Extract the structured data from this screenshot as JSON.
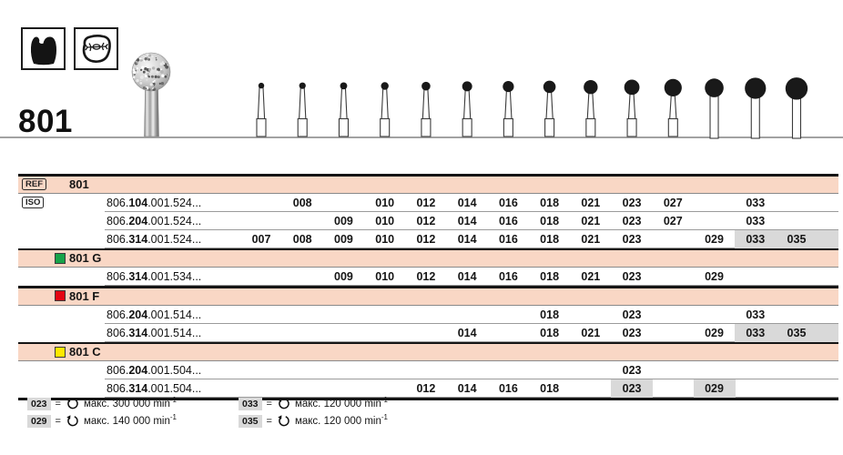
{
  "header": {
    "product_number": "801",
    "icons": [
      {
        "name": "tooth-crown-icon"
      },
      {
        "name": "occlusal-surface-icon"
      }
    ]
  },
  "columns": [
    "007",
    "008",
    "009",
    "010",
    "012",
    "014",
    "016",
    "018",
    "021",
    "023",
    "027",
    "029",
    "033",
    "035"
  ],
  "table": {
    "sections": [
      {
        "badge": "REF",
        "title": "801",
        "swatch": null,
        "rows": [
          {
            "badge": "ISO",
            "code_pre": "806.",
            "code_bold": "104",
            "code_post": ".001.524...",
            "present": [
              "008",
              "010",
              "012",
              "014",
              "016",
              "018",
              "021",
              "023",
              "027",
              "033"
            ],
            "highlight": []
          },
          {
            "badge": null,
            "code_pre": "806.",
            "code_bold": "204",
            "code_post": ".001.524...",
            "present": [
              "009",
              "010",
              "012",
              "014",
              "016",
              "018",
              "021",
              "023",
              "027",
              "033"
            ],
            "highlight": []
          },
          {
            "badge": null,
            "code_pre": "806.",
            "code_bold": "314",
            "code_post": ".001.524...",
            "present": [
              "007",
              "008",
              "009",
              "010",
              "012",
              "014",
              "016",
              "018",
              "021",
              "023",
              "029",
              "033",
              "035"
            ],
            "highlight": [
              "033",
              "035"
            ]
          }
        ]
      },
      {
        "badge": null,
        "title": "801 G",
        "swatch": "#17a349",
        "rows": [
          {
            "badge": null,
            "code_pre": "806.",
            "code_bold": "314",
            "code_post": ".001.534...",
            "present": [
              "009",
              "010",
              "012",
              "014",
              "016",
              "018",
              "021",
              "023",
              "029"
            ],
            "highlight": []
          }
        ]
      },
      {
        "badge": null,
        "title": "801 F",
        "swatch": "#e30613",
        "rows": [
          {
            "badge": null,
            "code_pre": "806.",
            "code_bold": "204",
            "code_post": ".001.514...",
            "present": [
              "018",
              "023",
              "033"
            ],
            "highlight": []
          },
          {
            "badge": null,
            "code_pre": "806.",
            "code_bold": "314",
            "code_post": ".001.514...",
            "present": [
              "014",
              "018",
              "021",
              "023",
              "029",
              "033",
              "035"
            ],
            "highlight": [
              "033",
              "035"
            ]
          }
        ]
      },
      {
        "badge": null,
        "title": "801 C",
        "swatch": "#ffe800",
        "rows": [
          {
            "badge": null,
            "code_pre": "806.",
            "code_bold": "204",
            "code_post": ".001.504...",
            "present": [
              "023"
            ],
            "highlight": []
          },
          {
            "badge": null,
            "code_pre": "806.",
            "code_bold": "314",
            "code_post": ".001.504...",
            "present": [
              "012",
              "014",
              "016",
              "018",
              "023",
              "029"
            ],
            "highlight": [
              "023",
              "029"
            ]
          }
        ]
      }
    ]
  },
  "legend": {
    "equals": "=",
    "items": [
      {
        "size": "023",
        "speed": "макс. 300 000 min",
        "exp": "-1"
      },
      {
        "size": "029",
        "speed": "макс. 140 000 min",
        "exp": "-1"
      },
      {
        "size": "033",
        "speed": "макс. 120 000 min",
        "exp": "-1"
      },
      {
        "size": "035",
        "speed": "макс. 120 000 min",
        "exp": "-1"
      }
    ]
  },
  "colors": {
    "pink_row": "#f9d7c5",
    "highlight": "#d9d9d9",
    "baseline": "#a2a2a2"
  }
}
